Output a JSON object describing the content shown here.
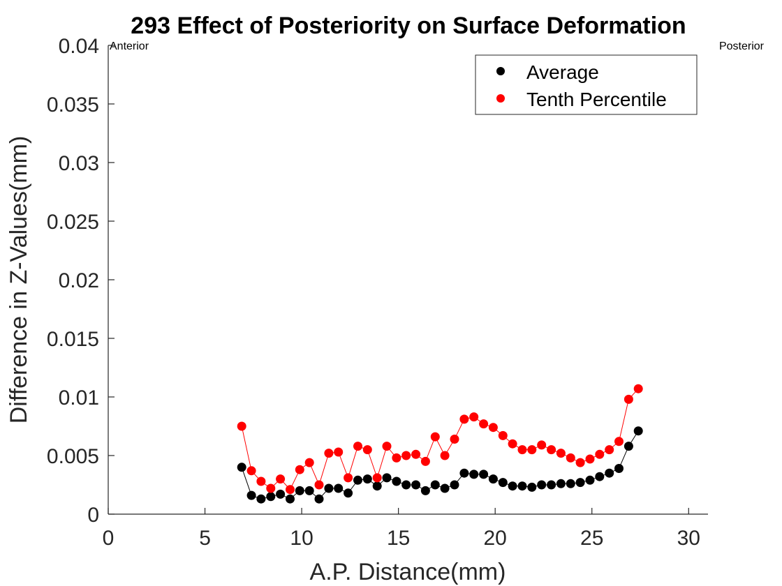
{
  "chart_data": {
    "type": "scatter",
    "title": "293  Effect of Posteriority on Surface Deformation",
    "xlabel": "A.P. Distance(mm)",
    "ylabel": "Difference in Z-Values(mm)",
    "xlim": [
      0,
      31
    ],
    "ylim": [
      0,
      0.04
    ],
    "xticks": [
      0,
      5,
      10,
      15,
      20,
      25,
      30
    ],
    "yticks": [
      0,
      0.005,
      0.01,
      0.015,
      0.02,
      0.025,
      0.03,
      0.035,
      0.04
    ],
    "xtick_labels": [
      "0",
      "5",
      "10",
      "15",
      "20",
      "25",
      "30"
    ],
    "ytick_labels": [
      "0",
      "0.005",
      "0.01",
      "0.015",
      "0.02",
      "0.025",
      "0.03",
      "0.035",
      "0.04"
    ],
    "grid": false,
    "legend": "top-right",
    "annotations": {
      "left": "Anterior",
      "right": "Posterior"
    },
    "x": [
      6.9,
      7.4,
      7.9,
      8.4,
      8.9,
      9.4,
      9.9,
      10.4,
      10.9,
      11.4,
      11.9,
      12.4,
      12.9,
      13.4,
      13.9,
      14.4,
      14.9,
      15.4,
      15.9,
      16.4,
      16.9,
      17.4,
      17.9,
      18.4,
      18.9,
      19.4,
      19.9,
      20.4,
      20.9,
      21.4,
      21.9,
      22.4,
      22.9,
      23.4,
      23.9,
      24.4,
      24.9,
      25.4,
      25.9,
      26.4,
      26.9,
      27.4
    ],
    "series": [
      {
        "name": "Average",
        "color": "#000000",
        "values": [
          0.004,
          0.0016,
          0.0013,
          0.0015,
          0.0017,
          0.0013,
          0.002,
          0.002,
          0.0013,
          0.0022,
          0.0022,
          0.0018,
          0.0029,
          0.003,
          0.0024,
          0.0031,
          0.0028,
          0.0025,
          0.0025,
          0.002,
          0.0025,
          0.0022,
          0.0025,
          0.0035,
          0.0034,
          0.0034,
          0.003,
          0.0027,
          0.0024,
          0.0024,
          0.0023,
          0.0025,
          0.0025,
          0.0026,
          0.0026,
          0.0027,
          0.0029,
          0.0032,
          0.0035,
          0.0039,
          0.0058,
          0.0071
        ]
      },
      {
        "name": "Tenth Percentile",
        "color": "#ff0000",
        "values": [
          0.0075,
          0.0037,
          0.0028,
          0.0022,
          0.003,
          0.0021,
          0.0038,
          0.0044,
          0.0025,
          0.0052,
          0.0053,
          0.0031,
          0.0058,
          0.0055,
          0.0031,
          0.0058,
          0.0048,
          0.005,
          0.0051,
          0.0045,
          0.0066,
          0.005,
          0.0064,
          0.0081,
          0.0083,
          0.0077,
          0.0074,
          0.0067,
          0.006,
          0.0055,
          0.0055,
          0.0059,
          0.0055,
          0.0052,
          0.0048,
          0.0044,
          0.0047,
          0.0051,
          0.0055,
          0.0062,
          0.0098,
          0.0107
        ]
      }
    ]
  }
}
